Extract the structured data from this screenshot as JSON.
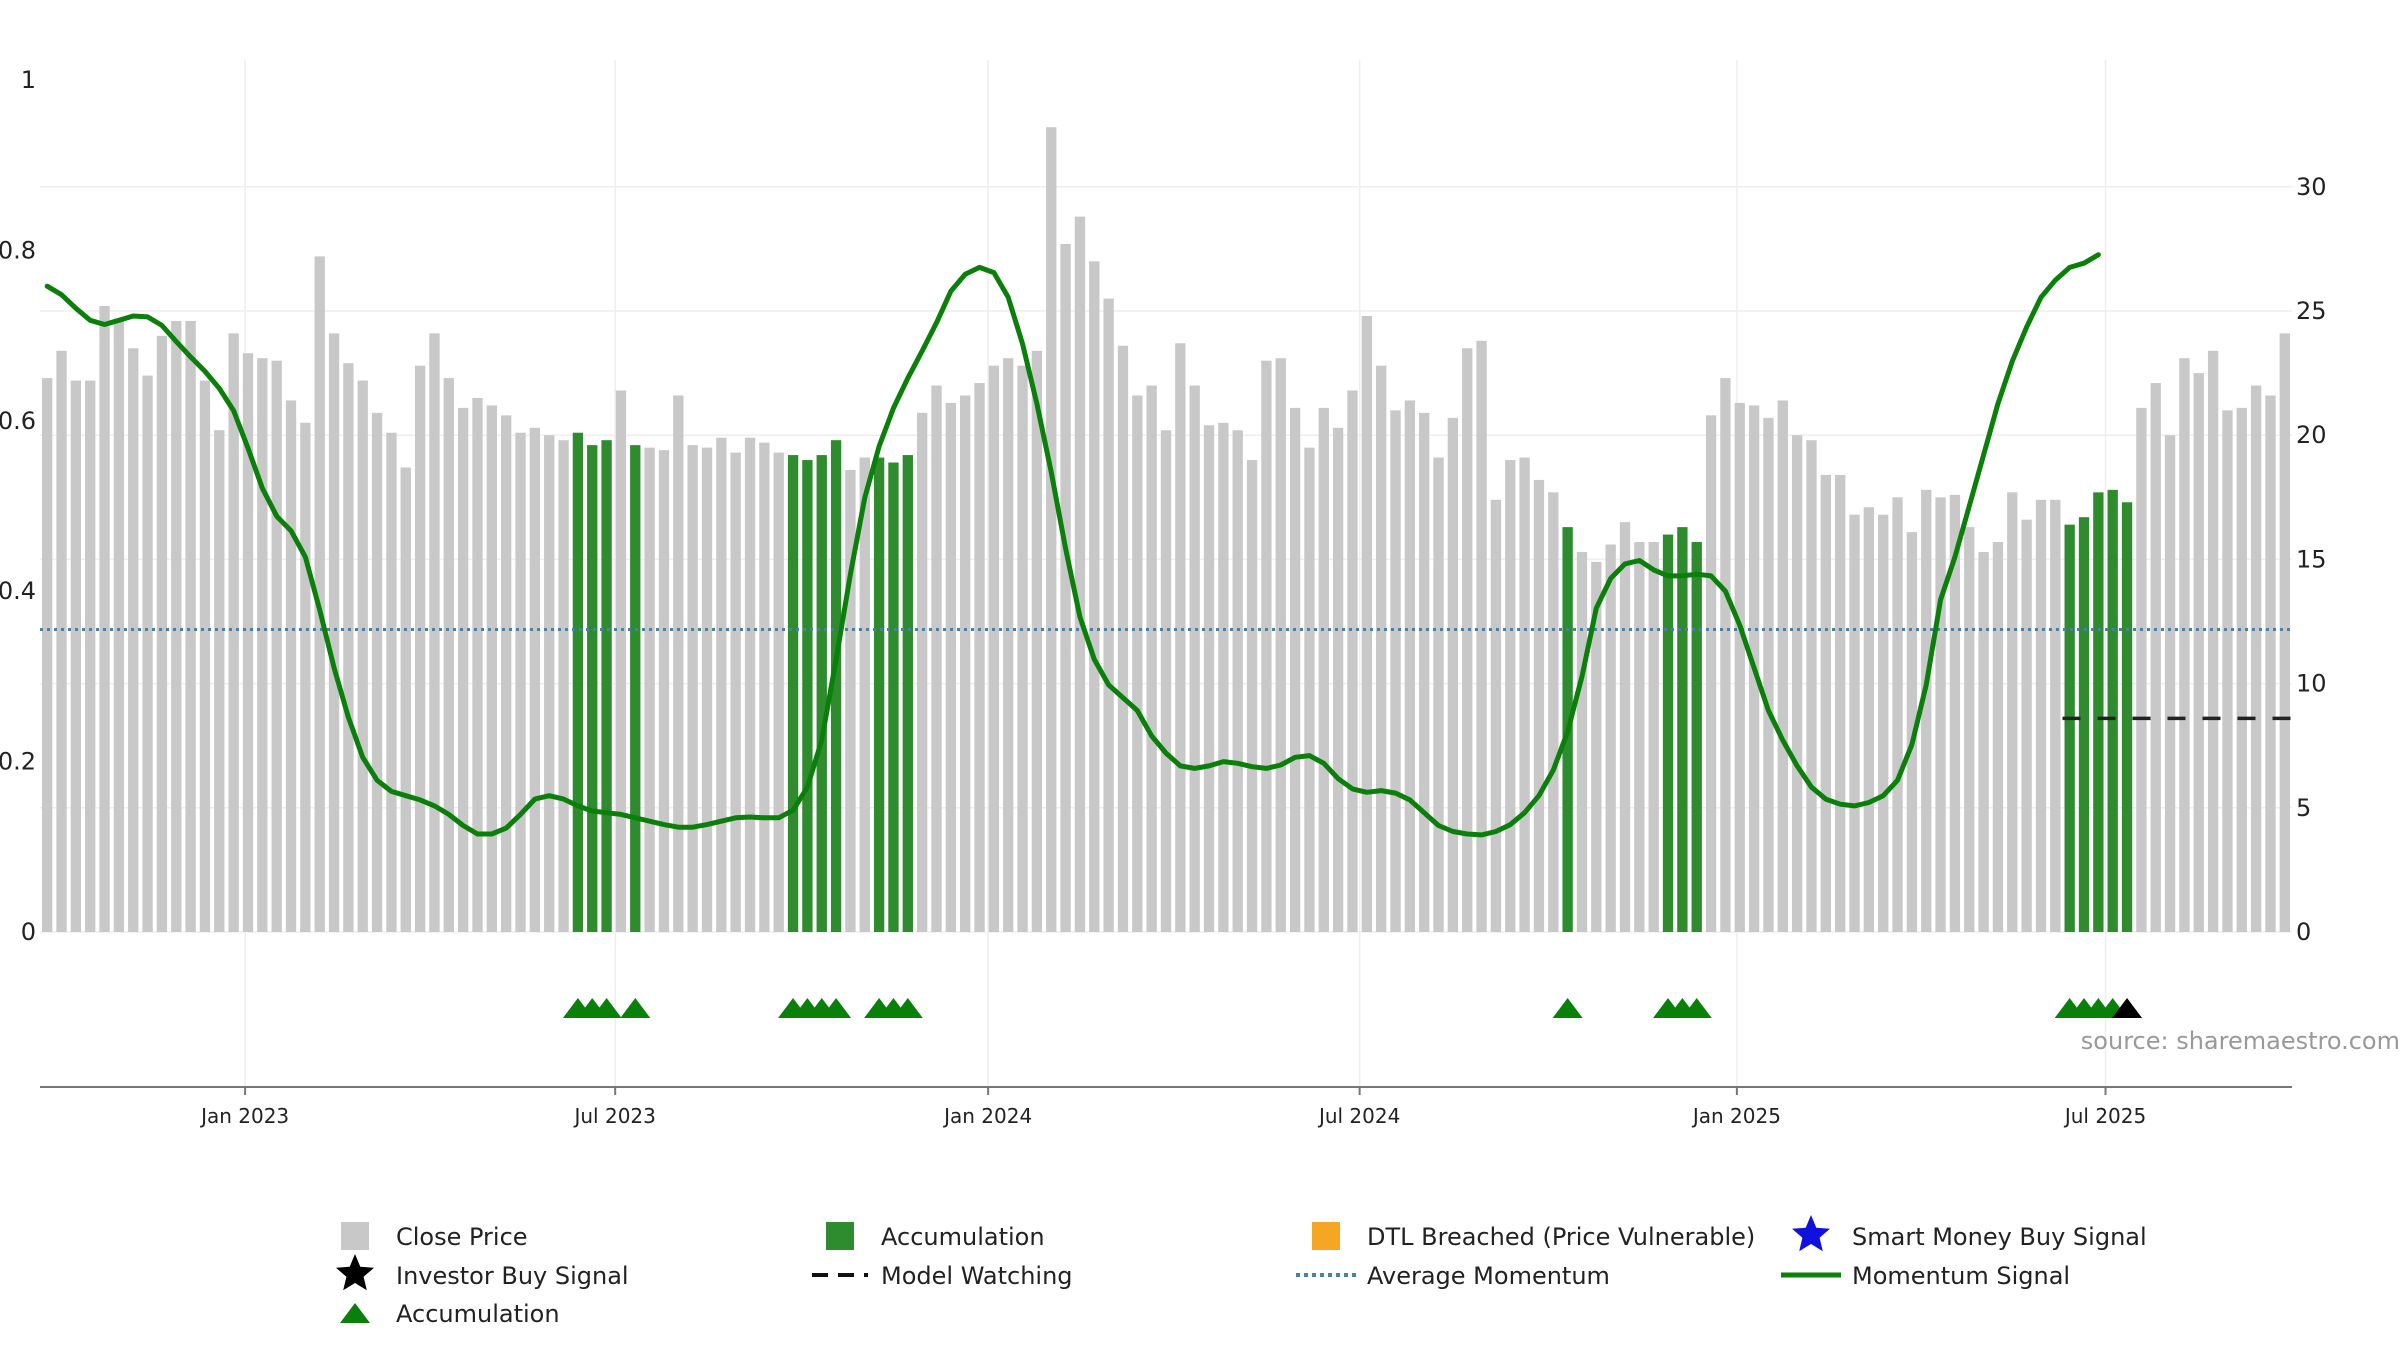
{
  "chart_data": {
    "type": "bar",
    "title": "",
    "xlabel": "",
    "ylabel_left": "",
    "ylabel_right": "",
    "ylim_left": [
      0,
      1
    ],
    "ylim_right": [
      0,
      34.3
    ],
    "left_ticks": [
      "0",
      "0.2",
      "0.4",
      "0.6",
      "0.8",
      "1"
    ],
    "left_tick_values": [
      0,
      0.2,
      0.4,
      0.6,
      0.8,
      1
    ],
    "right_ticks": [
      "0",
      "5",
      "10",
      "15",
      "20",
      "25",
      "30"
    ],
    "right_tick_values": [
      0,
      5,
      10,
      15,
      20,
      25,
      30
    ],
    "x_tick_labels": [
      "Jan 2023",
      "Jul 2023",
      "Jan 2024",
      "Jul 2024",
      "Jan 2025",
      "Jul 2025"
    ],
    "x_tick_weeks": [
      14.3,
      40.1,
      66.1,
      92.0,
      118.3,
      144.0
    ],
    "weeks_count": 157,
    "close_prices": [
      22.3,
      23.4,
      22.2,
      22.2,
      25.2,
      24.7,
      23.5,
      22.4,
      24.0,
      24.6,
      24.6,
      22.2,
      20.2,
      24.1,
      23.3,
      23.1,
      23.0,
      21.4,
      20.5,
      27.2,
      24.1,
      22.9,
      22.2,
      20.9,
      20.1,
      18.7,
      22.8,
      24.1,
      22.3,
      21.1,
      21.5,
      21.2,
      20.8,
      20.1,
      20.3,
      20.0,
      19.8,
      20.1,
      19.6,
      19.8,
      21.8,
      19.6,
      19.5,
      19.4,
      21.6,
      19.6,
      19.5,
      19.9,
      19.3,
      19.9,
      19.7,
      19.3,
      19.2,
      19.0,
      19.2,
      19.8,
      18.6,
      19.1,
      19.1,
      18.9,
      19.2,
      20.9,
      22.0,
      21.3,
      21.6,
      22.1,
      22.8,
      23.1,
      22.8,
      23.4,
      32.4,
      27.7,
      28.8,
      27.0,
      25.5,
      23.6,
      21.6,
      22.0,
      20.2,
      23.7,
      22.0,
      20.4,
      20.5,
      20.2,
      19.0,
      23.0,
      23.1,
      21.1,
      19.5,
      21.1,
      20.3,
      21.8,
      24.8,
      22.8,
      21.0,
      21.4,
      20.9,
      19.1,
      20.7,
      23.5,
      23.8,
      17.4,
      19.0,
      19.1,
      18.2,
      17.7,
      16.3,
      15.3,
      14.9,
      15.6,
      16.5,
      15.7,
      15.7,
      16.0,
      16.3,
      15.7,
      20.8,
      22.3,
      21.3,
      21.2,
      20.7,
      21.4,
      20.0,
      19.8,
      18.4,
      18.4,
      16.8,
      17.1,
      16.8,
      17.5,
      16.1,
      17.8,
      17.5,
      17.6,
      16.3,
      15.3,
      15.7,
      17.7,
      16.6,
      17.4,
      17.4,
      16.4,
      16.7,
      17.7,
      17.8,
      17.3,
      21.1,
      22.1,
      20.0,
      23.1,
      22.5,
      23.4,
      21.0,
      21.1,
      22.0,
      21.6,
      24.1
    ],
    "accumulation_weeks": [
      37,
      38,
      39,
      41,
      52,
      53,
      54,
      55,
      58,
      59,
      60,
      106,
      113,
      114,
      115,
      141,
      142,
      143,
      144,
      145
    ],
    "momentum_signal": [
      0.758,
      0.748,
      0.732,
      0.718,
      0.713,
      0.718,
      0.723,
      0.722,
      0.712,
      0.693,
      0.675,
      0.658,
      0.638,
      0.612,
      0.568,
      0.521,
      0.488,
      0.471,
      0.44,
      0.378,
      0.31,
      0.252,
      0.205,
      0.178,
      0.165,
      0.16,
      0.155,
      0.148,
      0.138,
      0.125,
      0.115,
      0.115,
      0.122,
      0.138,
      0.156,
      0.16,
      0.156,
      0.148,
      0.142,
      0.14,
      0.138,
      0.134,
      0.13,
      0.126,
      0.123,
      0.123,
      0.126,
      0.13,
      0.134,
      0.135,
      0.134,
      0.134,
      0.143,
      0.17,
      0.225,
      0.32,
      0.42,
      0.51,
      0.57,
      0.615,
      0.65,
      0.682,
      0.715,
      0.752,
      0.772,
      0.78,
      0.774,
      0.745,
      0.69,
      0.62,
      0.54,
      0.45,
      0.37,
      0.32,
      0.29,
      0.275,
      0.26,
      0.23,
      0.21,
      0.195,
      0.192,
      0.195,
      0.2,
      0.198,
      0.194,
      0.192,
      0.196,
      0.205,
      0.207,
      0.198,
      0.18,
      0.168,
      0.164,
      0.166,
      0.163,
      0.155,
      0.14,
      0.125,
      0.118,
      0.115,
      0.114,
      0.118,
      0.126,
      0.14,
      0.16,
      0.19,
      0.235,
      0.3,
      0.38,
      0.415,
      0.432,
      0.436,
      0.425,
      0.418,
      0.418,
      0.42,
      0.418,
      0.4,
      0.36,
      0.31,
      0.26,
      0.225,
      0.195,
      0.17,
      0.156,
      0.15,
      0.148,
      0.152,
      0.16,
      0.178,
      0.22,
      0.29,
      0.39,
      0.44,
      0.5,
      0.56,
      0.62,
      0.67,
      0.71,
      0.745,
      0.765,
      0.78,
      0.785,
      0.795
    ],
    "average_momentum": 0.355,
    "model_watching": {
      "start_week": 141,
      "end_week": 156,
      "value": 8.6
    },
    "accumulation_markers": [
      37,
      38,
      39,
      41,
      52,
      53,
      54,
      55,
      58,
      59,
      60,
      106,
      113,
      114,
      115,
      141,
      142,
      143,
      144
    ],
    "investor_buy_signals": [
      145
    ],
    "colors": {
      "close_bar": "#c8c8c8",
      "accumulation_bar": "#2e8b2e",
      "momentum_line": "#0a800a",
      "average_line": "#4a7fa8",
      "marker_green": "#0a800a",
      "investor_star": "#000000",
      "smart_money_star": "#1111dd",
      "dtl": "#f5a623",
      "grid": "#eeeeee"
    },
    "legend": [
      {
        "label": "Close Price",
        "shape": "square-gray"
      },
      {
        "label": "Accumulation",
        "shape": "square-green"
      },
      {
        "label": "DTL Breached (Price Vulnerable)",
        "shape": "square-orange"
      },
      {
        "label": "Smart Money Buy Signal",
        "shape": "star-blue"
      },
      {
        "label": "Investor Buy Signal",
        "shape": "star-black"
      },
      {
        "label": "Model Watching",
        "shape": "dash-black"
      },
      {
        "label": "Average Momentum",
        "shape": "dot-blue"
      },
      {
        "label": "Momentum Signal",
        "shape": "line-green"
      },
      {
        "label": "Accumulation",
        "shape": "triangle-green"
      }
    ],
    "source": "source: sharemaestro.com"
  }
}
